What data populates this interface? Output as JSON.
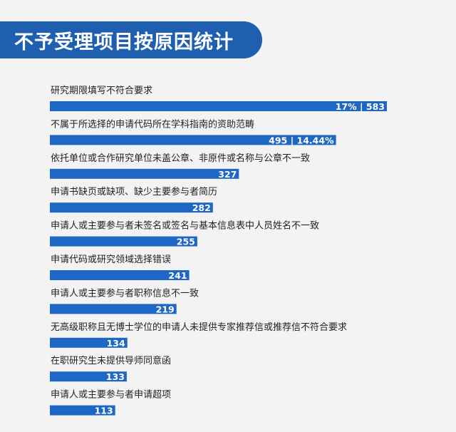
{
  "title": "不予受理项目按原因统计",
  "colors": {
    "bar": "#1f67c4",
    "title_bg": "#1f5fb0",
    "bar_text": "#ffffff",
    "label_text": "#222222"
  },
  "chart_data": {
    "type": "bar",
    "orientation": "horizontal",
    "title": "不予受理项目按原因统计",
    "categories": [
      "研究期限填写不符合要求",
      "不属于所选择的申请代码所在学科指南的资助范畴",
      "依托单位或合作研究单位未盖公章、非原件或名称与公章不一致",
      "申请书缺页或缺项、缺少主要参与者简历",
      "申请人或主要参与者未签名或签名与基本信息表中人员姓名不一致",
      "申请代码或研究领域选择错误",
      "申请人或主要参与者职称信息不一致",
      "无高级职称且无博士学位的申请人未提供专家推荐信或推荐信不符合要求",
      "在职研究生未提供导师同意函",
      "申请人或主要参与者申请超项"
    ],
    "values": [
      583,
      495,
      327,
      282,
      255,
      241,
      219,
      134,
      133,
      113
    ],
    "value_labels": [
      "17% | 583",
      "495 | 14.44%",
      "327",
      "282",
      "255",
      "241",
      "219",
      "134",
      "133",
      "113"
    ],
    "xlim": [
      0,
      583
    ],
    "grid": false,
    "legend": "none"
  }
}
